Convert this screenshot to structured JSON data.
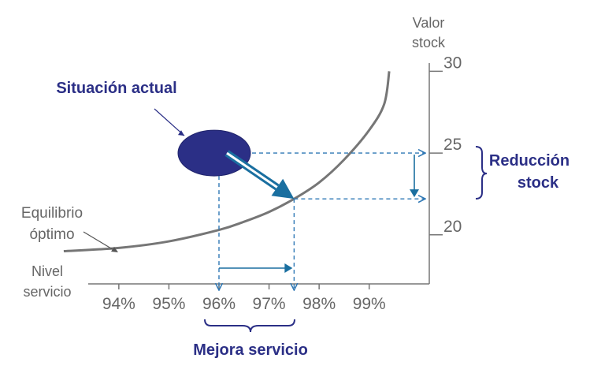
{
  "chart_data": {
    "type": "line",
    "x_ticks": [
      "94%",
      "95%",
      "96%",
      "97%",
      "98%",
      "99%"
    ],
    "x_tick_values": [
      94,
      95,
      96,
      97,
      98,
      99
    ],
    "y_ticks": [
      "30",
      "25",
      "20"
    ],
    "y_tick_values": [
      30,
      25,
      20
    ],
    "xlabel": "Nivel servicio",
    "ylabel_lines": [
      "Valor",
      "stock"
    ],
    "xlabel_lines": [
      "Nivel",
      "servicio"
    ],
    "xlim": [
      93.2,
      100.2
    ],
    "ylim": [
      17.0,
      30.5
    ],
    "series": [
      {
        "points": [
          [
            92.9,
            19.0
          ],
          [
            94.0,
            19.2
          ],
          [
            95.0,
            19.6
          ],
          [
            96.0,
            20.3
          ],
          [
            96.5,
            20.8
          ],
          [
            97.0,
            21.4
          ],
          [
            97.5,
            22.2
          ],
          [
            98.0,
            23.2
          ],
          [
            98.5,
            24.6
          ],
          [
            99.0,
            26.4
          ],
          [
            99.3,
            28.0
          ],
          [
            99.4,
            30.0
          ]
        ]
      }
    ],
    "current_situation": {
      "label": "Situación actual",
      "x": 96,
      "y": 25
    },
    "optimal_point": {
      "label_lines": [
        "Equilibrio",
        "óptimo"
      ],
      "x": 97.5,
      "y": 22.2
    },
    "annotations": {
      "stock_reduction": {
        "lines": [
          "Reducción",
          "stock"
        ],
        "from": 25,
        "to": 22.2
      },
      "service_improvement": {
        "label": "Mejora servicio",
        "from": 96,
        "to": 97.5
      }
    },
    "colors": {
      "curve": "#767676",
      "axis": "#767676",
      "ellipse": "#2b2f86",
      "arrow": "#1a6fa0",
      "guide": "#2f78b5",
      "annotation_text": "#2b2f86"
    }
  }
}
